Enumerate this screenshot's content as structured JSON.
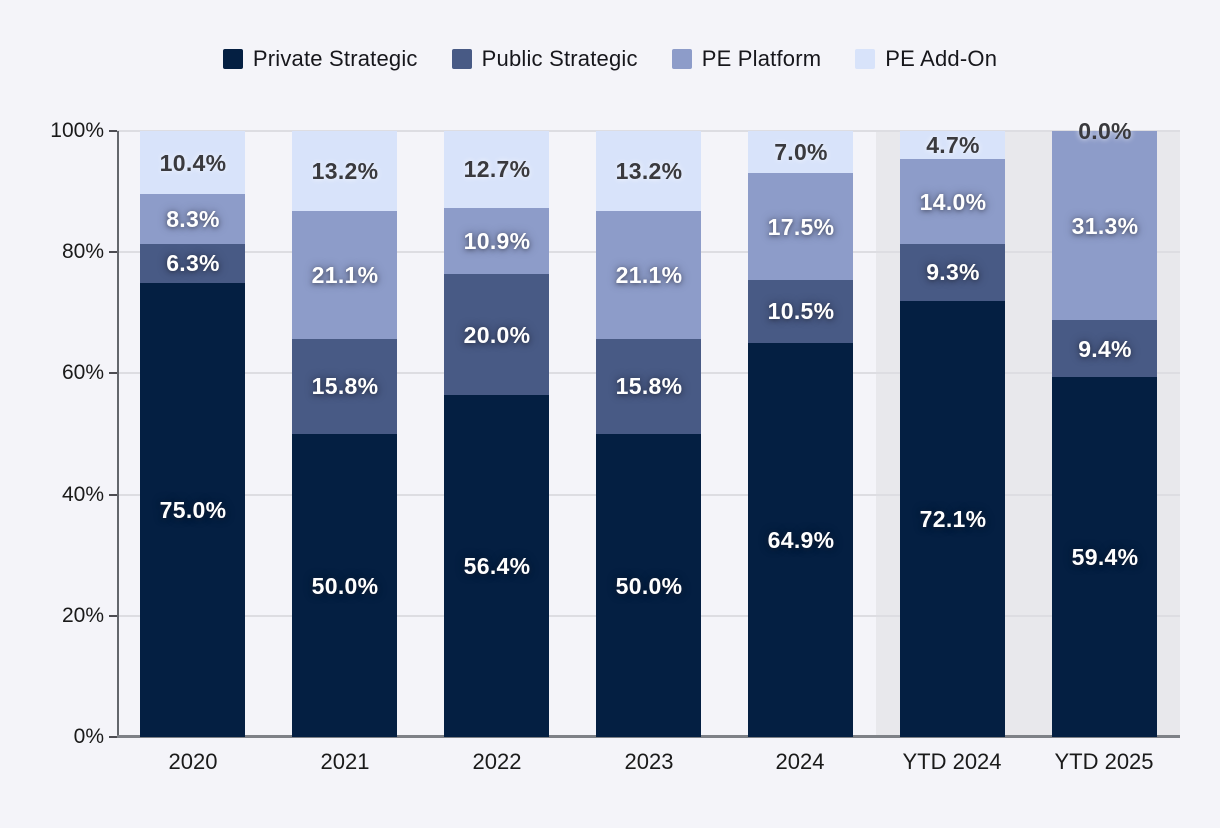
{
  "chart_data": {
    "type": "bar",
    "stacked": true,
    "percent_stacked": true,
    "title": "",
    "xlabel": "",
    "ylabel": "",
    "ylim": [
      0,
      100
    ],
    "grid": "horizontal",
    "legend_position": "top-center",
    "categories": [
      "2020",
      "2021",
      "2022",
      "2023",
      "2024",
      "YTD 2024",
      "YTD 2025"
    ],
    "series": [
      {
        "name": "Private Strategic",
        "color": "#041f42",
        "label_style": "light",
        "values": [
          75.0,
          50.0,
          56.4,
          50.0,
          64.9,
          72.1,
          59.4
        ]
      },
      {
        "name": "Public Strategic",
        "color": "#485a85",
        "label_style": "light",
        "values": [
          6.3,
          15.8,
          20.0,
          15.8,
          10.5,
          9.3,
          9.4
        ]
      },
      {
        "name": "PE Platform",
        "color": "#8d9cc9",
        "label_style": "light",
        "values": [
          8.3,
          21.1,
          10.9,
          21.1,
          17.5,
          14.0,
          31.3
        ]
      },
      {
        "name": "PE Add-On",
        "color": "#d8e3fa",
        "label_style": "dark",
        "values": [
          10.4,
          13.2,
          12.7,
          13.2,
          7.0,
          4.7,
          0.0
        ]
      }
    ],
    "ytick_values": [
      0,
      20,
      40,
      60,
      80,
      100
    ],
    "ytick_labels": [
      "0%",
      "20%",
      "40%",
      "60%",
      "80%",
      "100%"
    ],
    "value_label_suffix": "%",
    "value_label_decimals": 1,
    "highlighted_categories": [
      "YTD 2024",
      "YTD 2025"
    ],
    "colors": {
      "background": "#f4f4f9",
      "highlight_band": "#e8e8ec",
      "gridline": "#dddde2",
      "axis": "#63666c",
      "axis_text": "#1a1a1a",
      "legend_text": "#17171c"
    }
  }
}
